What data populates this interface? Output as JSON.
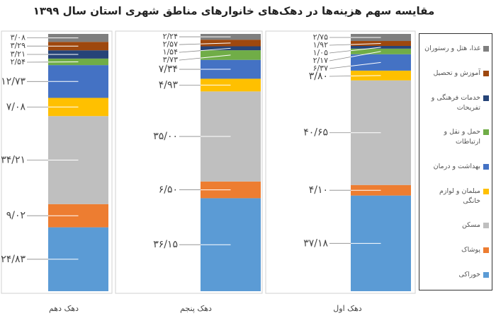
{
  "chart_data": {
    "type": "stacked-bar",
    "title": "مقایسه سهم هزینه‌ها در دهک‌های خانوارهای مناطق شهری استان سال ۱۳۹۹",
    "categories": [
      "دهک دهم",
      "دهک پنجم",
      "دهک اول"
    ],
    "series": [
      {
        "name": "خوراکی",
        "color": "#5b9bd5",
        "values": [
          24.83,
          36.15,
          37.18
        ],
        "value_labels": [
          "۲۴/۸۳",
          "۳۶/۱۵",
          "۳۷/۱۸"
        ]
      },
      {
        "name": "پوشاک",
        "color": "#ed7d31",
        "values": [
          9.02,
          6.5,
          4.1
        ],
        "value_labels": [
          "۹/۰۲",
          "۶/۵۰",
          "۴/۱۰"
        ]
      },
      {
        "name": "مسکن",
        "color": "#bfbfbf",
        "values": [
          34.21,
          35.0,
          40.65
        ],
        "value_labels": [
          "۳۴/۲۱",
          "۳۵/۰۰",
          "۴۰/۶۵"
        ]
      },
      {
        "name": "مبلمان و لوازم خانگی",
        "color": "#ffc000",
        "values": [
          7.08,
          4.93,
          3.8
        ],
        "value_labels": [
          "۷/۰۸",
          "۴/۹۳",
          "۳/۸۰"
        ]
      },
      {
        "name": "بهداشت و درمان",
        "color": "#4472c4",
        "values": [
          12.73,
          7.34,
          6.37
        ],
        "value_labels": [
          "۱۲/۷۳",
          "۷/۳۴",
          "۶/۳۷"
        ]
      },
      {
        "name": "حمل و نقل و ارتباطات",
        "color": "#70ad47",
        "values": [
          2.54,
          3.73,
          2.17
        ],
        "value_labels": [
          "۲/۵۴",
          "۳/۷۳",
          "۲/۱۷"
        ]
      },
      {
        "name": "خدمات فرهنگی و تفریحات",
        "color": "#264478",
        "values": [
          3.21,
          1.54,
          1.05
        ],
        "value_labels": [
          "۳/۲۱",
          "۱/۵۴",
          "۱/۰۵"
        ]
      },
      {
        "name": "آموزش و تحصیل",
        "color": "#9e480e",
        "values": [
          3.29,
          2.57,
          1.92
        ],
        "value_labels": [
          "۳/۲۹",
          "۲/۵۷",
          "۱/۹۲"
        ]
      },
      {
        "name": "غذا، هتل و رستوران",
        "color": "#7f7f7f",
        "values": [
          3.08,
          2.24,
          2.75
        ],
        "value_labels": [
          "۳/۰۸",
          "۲/۲۴",
          "۲/۷۵"
        ]
      }
    ]
  }
}
